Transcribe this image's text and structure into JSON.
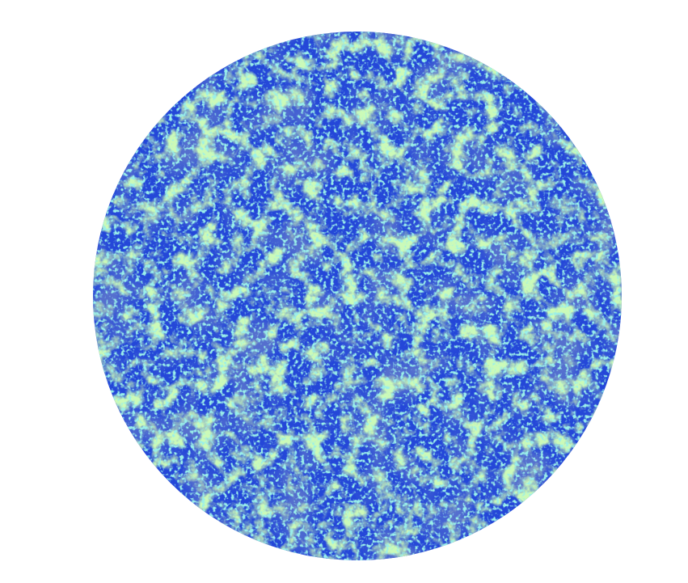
{
  "image": {
    "background_color": "#ffffff",
    "shape": "circle",
    "palette": {
      "deep_blue": "#1a2fb8",
      "blue": "#2447d8",
      "mid_blue": "#2e5ee6",
      "cyan": "#52dcd2",
      "green": "#9af57a"
    },
    "composition": {
      "blue_fraction": 0.72,
      "cyan_fraction": 0.08,
      "green_fraction": 0.2
    }
  }
}
